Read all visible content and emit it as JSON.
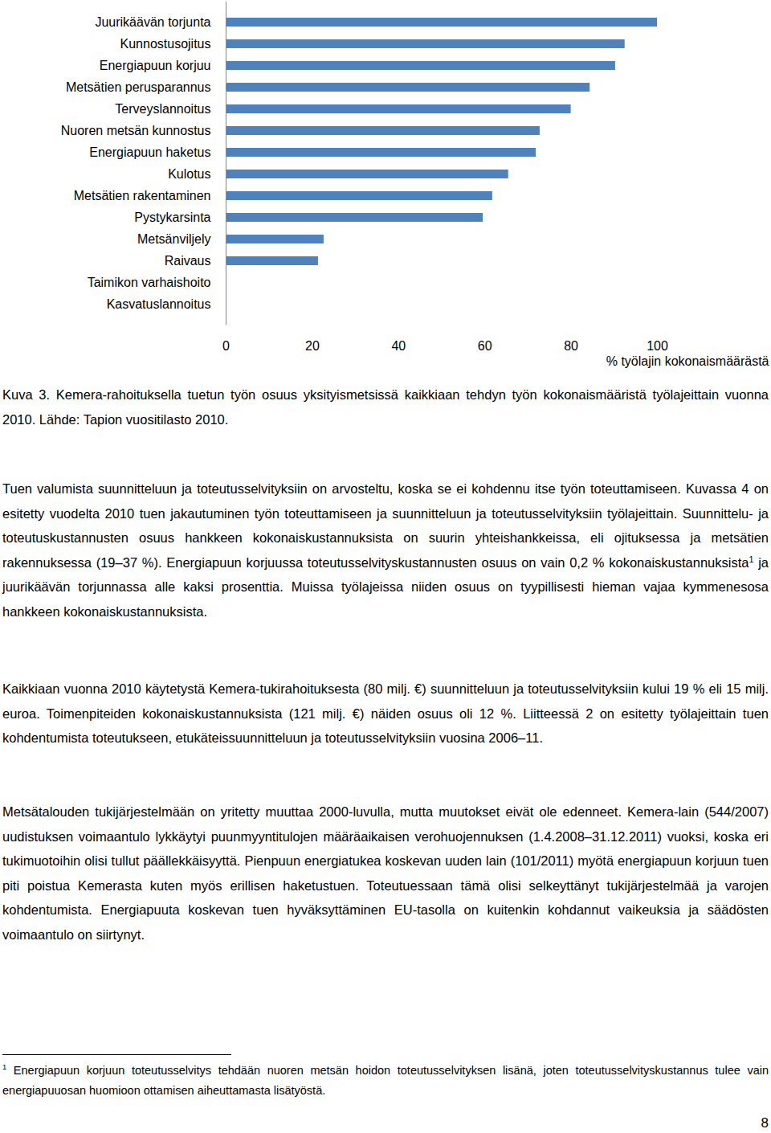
{
  "chart_data": {
    "type": "bar",
    "orientation": "horizontal",
    "categories": [
      "Juurikäävän torjunta",
      "Kunnostusojitus",
      "Energiapuun korjuu",
      "Metsätien perusparannus",
      "Terveyslannoitus",
      "Nuoren metsän kunnostus",
      "Energiapuun haketus",
      "Kulotus",
      "Metsätien rakentaminen",
      "Pystykarsinta",
      "Metsänviljely",
      "Raivaus",
      "Taimikon varhaishoito",
      "Kasvatuslannoitus"
    ],
    "values": [
      100,
      92.5,
      90.3,
      84.4,
      80,
      72.8,
      71.9,
      65.5,
      61.8,
      59.6,
      22.7,
      21.4,
      0,
      0
    ],
    "color": "#4f81bd",
    "x_label": "% työlajin kokonaismäärästä",
    "xlim": [
      0,
      100
    ],
    "xticks": [
      0,
      20,
      40,
      60,
      80,
      100
    ],
    "grid": false
  },
  "document": {
    "caption": "Kuva 3. Kemera-rahoituksella tuetun työn osuus yksityismetsissä kaikkiaan tehdyn työn kokonaismääristä työlajeittain vuonna 2010. Lähde: Tapion vuositilasto 2010.",
    "paragraphs": [
      [
        {
          "text": "Tuen valumista suunnitteluun ja toteutusselvityksiin on arvosteltu, koska se ei kohdennu itse työn toteuttamiseen. Kuvassa 4 on esitetty vuodelta 2010 tuen jakautuminen työn toteuttamiseen ja suunnitteluun ja toteutusselvityksiin työlajeittain. Suunnittelu- ja toteutuskustannusten osuus hankkeen kokonaiskustannuksista on suurin yhteishankkeissa, eli ojituksessa ja metsätien rakennuksessa (19–37 %). Energiapuun korjuussa toteutusselvityskustannusten osuus on vain 0,2 % kokonaiskustannuksista"
        },
        {
          "sup": "1"
        },
        {
          "text": " ja juurikäävän torjunnassa alle kaksi prosenttia. Muissa työlajeissa niiden osuus on tyypillisesti hieman vajaa kymmenesosa hankkeen kokonaiskustannuksista."
        }
      ],
      [
        {
          "text": "Kaikkiaan vuonna 2010 käytetystä Kemera-tukirahoituksesta (80 milj. €) suunnitteluun ja toteutusselvityksiin kului 19 % eli 15 milj. euroa. Toimenpiteiden kokonaiskustannuksista (121 milj. €) näiden osuus oli 12 %. Liitteessä 2 on esitetty työlajeittain tuen kohdentumista toteutukseen, etukäteissuunnitteluun ja toteutusselvityksiin vuosina 2006–11."
        }
      ],
      [
        {
          "text": "Metsätalouden tukijärjestelmään on yritetty muuttaa 2000-luvulla, mutta muutokset eivät ole edenneet. Kemera-lain (544/2007) uudistuksen voimaantulo lykkäytyi puunmyyntitulojen määräaikaisen verohuojennuksen (1.4.2008–31.12.2011) vuoksi, koska eri tukimuotoihin olisi tullut päällekkäisyyttä. Pienpuun energiatukea koskevan uuden lain (101/2011) myötä energiapuun korjuun tuen piti poistua Kemerasta kuten myös erillisen haketustuen. Toteutuessaan tämä olisi selkeyttänyt tukijärjestelmää ja varojen kohdentumista. Energiapuuta koskevan tuen hyväksyttäminen EU-tasolla on kuitenkin kohdannut vaikeuksia ja säädösten voimaantulo on siirtynyt."
        }
      ]
    ],
    "footnote": [
      {
        "sup": "1"
      },
      {
        "text": " Energiapuun korjuun toteutusselvitys tehdään nuoren metsän hoidon toteutusselvityksen lisänä, joten toteutusselvityskustannus tulee vain energiapuuosan huomioon ottamisen aiheuttamasta lisätyöstä."
      }
    ],
    "page_number": "8"
  }
}
